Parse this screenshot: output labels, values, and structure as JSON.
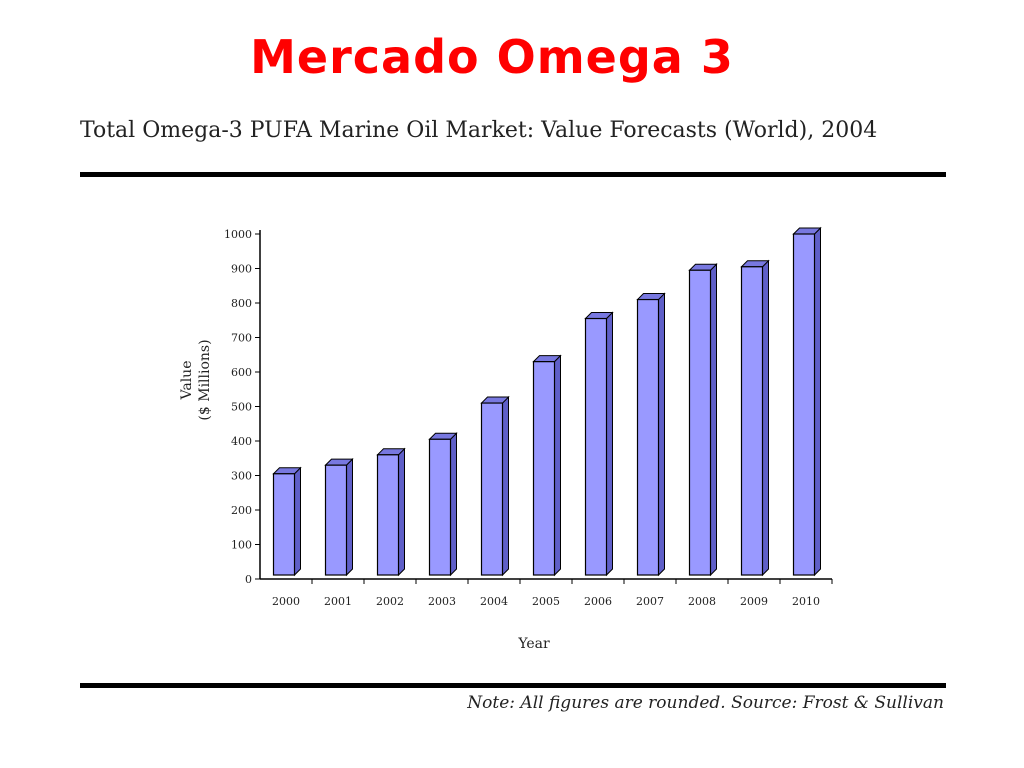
{
  "slide": {
    "title": "Mercado Omega 3"
  },
  "chart_data": {
    "type": "bar",
    "title": "Total Omega-3 PUFA Marine Oil Market: Value Forecasts (World), 2004",
    "xlabel": "Year",
    "ylabel_line1": "Value",
    "ylabel_line2": "($ Millions)",
    "categories": [
      "2000",
      "2001",
      "2002",
      "2003",
      "2004",
      "2005",
      "2006",
      "2007",
      "2008",
      "2009",
      "2010"
    ],
    "values": [
      305,
      330,
      360,
      405,
      510,
      630,
      755,
      810,
      895,
      905,
      1000
    ],
    "ylim": [
      0,
      1000
    ],
    "yticks": [
      0,
      100,
      200,
      300,
      400,
      500,
      600,
      700,
      800,
      900,
      1000
    ],
    "grid": false,
    "bar_color": "#9999ff",
    "bar_side_color": "#5f5fc8",
    "bar_top_color": "#7878e0"
  },
  "footer": {
    "note": "Note: All figures are rounded. Source: Frost & Sullivan"
  }
}
